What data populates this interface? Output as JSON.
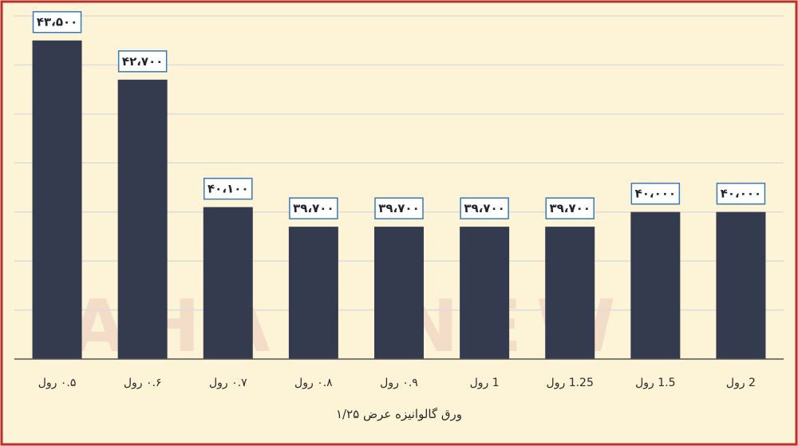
{
  "chart_data": {
    "type": "bar",
    "categories": [
      "۰.۵ رول",
      "۰.۶ رول",
      "۰.۷ رول",
      "۰.۸ رول",
      "۰.۹ رول",
      "1 رول",
      "1.25 رول",
      "1.5 رول",
      "2 رول"
    ],
    "values": [
      43500,
      42700,
      40100,
      39700,
      39700,
      39700,
      39700,
      40000,
      40000
    ],
    "value_labels": [
      "۴۳،۵۰۰",
      "۴۲،۷۰۰",
      "۴۰،۱۰۰",
      "۳۹،۷۰۰",
      "۳۹،۷۰۰",
      "۳۹،۷۰۰",
      "۳۹،۷۰۰",
      "۴۰،۰۰۰",
      "۴۰،۰۰۰"
    ],
    "xlabel": "ورق گالوانیزه عرض ۱/۲۵",
    "ylabel": "",
    "title": "",
    "ylim": [
      37000,
      44000
    ],
    "grid": true,
    "legend": "none",
    "bar_color": "#343b4f",
    "label_box_border": "#3a78b6",
    "frame_color": "#b8312a",
    "background": "#fdf3d6"
  },
  "watermark": {
    "text": "AHAN NEWS",
    "color": "#f3dcc8"
  }
}
